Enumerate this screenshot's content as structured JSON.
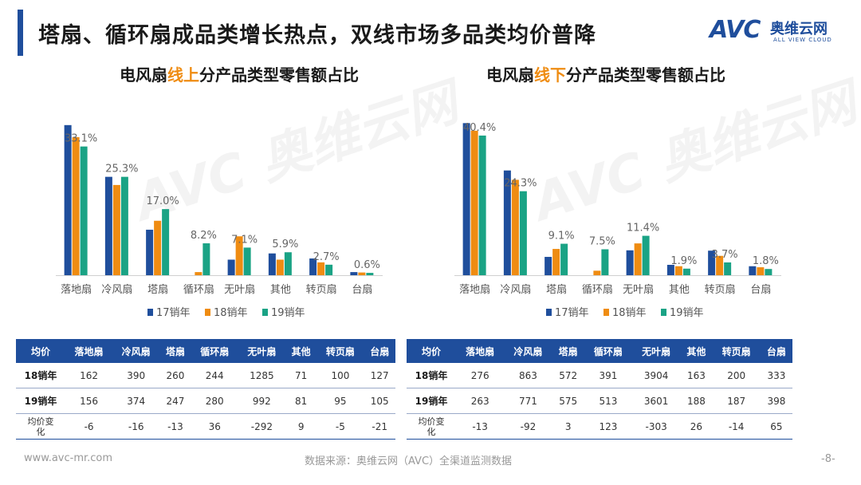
{
  "page": {
    "title": "塔扇、循环扇成品类增长热点，双线市场多品类均价普降",
    "logo_letters": "AVC",
    "logo_cn": "奥维云网",
    "logo_en": "ALL VIEW CLOUD",
    "footer_url": "www.avc-mr.com",
    "footer_source": "数据来源：奥维云网（AVC）全渠道监测数据",
    "page_number": "-8-",
    "colors": {
      "s17": "#1f4e9c",
      "s18": "#ef8c12",
      "s19": "#1aa385",
      "accent": "#ef8c12",
      "brand": "#1f4e9c"
    }
  },
  "chart_data": [
    {
      "type": "bar",
      "title_parts": [
        "电风扇",
        "线上",
        "分产品类型零售额占比"
      ],
      "categories": [
        "落地扇",
        "冷风扇",
        "塔扇",
        "循环扇",
        "无叶扇",
        "其他",
        "转页扇",
        "台扇"
      ],
      "series": [
        {
          "name": "17销年",
          "values": [
            38.6,
            25.3,
            11.7,
            0.0,
            4.0,
            5.6,
            4.3,
            0.8
          ]
        },
        {
          "name": "18销年",
          "values": [
            35.5,
            23.2,
            14.0,
            0.8,
            10.0,
            4.0,
            3.3,
            0.7
          ]
        },
        {
          "name": "19销年",
          "values": [
            33.1,
            25.3,
            17.0,
            8.2,
            7.1,
            5.9,
            2.7,
            0.6
          ]
        }
      ],
      "data_labels": [
        "33.1%",
        "25.3%",
        "17.0%",
        "8.2%",
        "7.1%",
        "5.9%",
        "2.7%",
        "0.6%"
      ],
      "ylim": [
        0,
        40
      ],
      "legend_position": "bottom"
    },
    {
      "type": "bar",
      "title_parts": [
        "电风扇",
        "线下",
        "分产品类型零售额占比"
      ],
      "categories": [
        "落地扇",
        "冷风扇",
        "塔扇",
        "循环扇",
        "无叶扇",
        "其他",
        "转页扇",
        "台扇"
      ],
      "series": [
        {
          "name": "17销年",
          "values": [
            44.0,
            30.3,
            5.3,
            0.0,
            7.2,
            3.0,
            7.1,
            2.6
          ]
        },
        {
          "name": "18销年",
          "values": [
            41.8,
            27.6,
            7.6,
            1.3,
            9.2,
            2.6,
            5.6,
            2.3
          ]
        },
        {
          "name": "19销年",
          "values": [
            40.4,
            24.3,
            9.1,
            7.5,
            11.4,
            1.9,
            3.7,
            1.8
          ]
        }
      ],
      "data_labels": [
        "40.4%",
        "24.3%",
        "9.1%",
        "7.5%",
        "11.4%",
        "1.9%",
        "3.7%",
        "1.8%"
      ],
      "ylim": [
        0,
        45
      ],
      "legend_position": "bottom"
    }
  ],
  "tables": [
    {
      "header": [
        "均价",
        "落地扇",
        "冷风扇",
        "塔扇",
        "循环扇",
        "无叶扇",
        "其他",
        "转页扇",
        "台扇"
      ],
      "rows": [
        [
          "18销年",
          "162",
          "390",
          "260",
          "244",
          "1285",
          "71",
          "100",
          "127"
        ],
        [
          "19销年",
          "156",
          "374",
          "247",
          "280",
          "992",
          "81",
          "95",
          "105"
        ],
        [
          "均价变化",
          "-6",
          "-16",
          "-13",
          "36",
          "-292",
          "9",
          "-5",
          "-21"
        ]
      ]
    },
    {
      "header": [
        "均价",
        "落地扇",
        "冷风扇",
        "塔扇",
        "循环扇",
        "无叶扇",
        "其他",
        "转页扇",
        "台扇"
      ],
      "rows": [
        [
          "18销年",
          "276",
          "863",
          "572",
          "391",
          "3904",
          "163",
          "200",
          "333"
        ],
        [
          "19销年",
          "263",
          "771",
          "575",
          "513",
          "3601",
          "188",
          "187",
          "398"
        ],
        [
          "均价变化",
          "-13",
          "-92",
          "3",
          "123",
          "-303",
          "26",
          "-14",
          "65"
        ]
      ]
    }
  ]
}
